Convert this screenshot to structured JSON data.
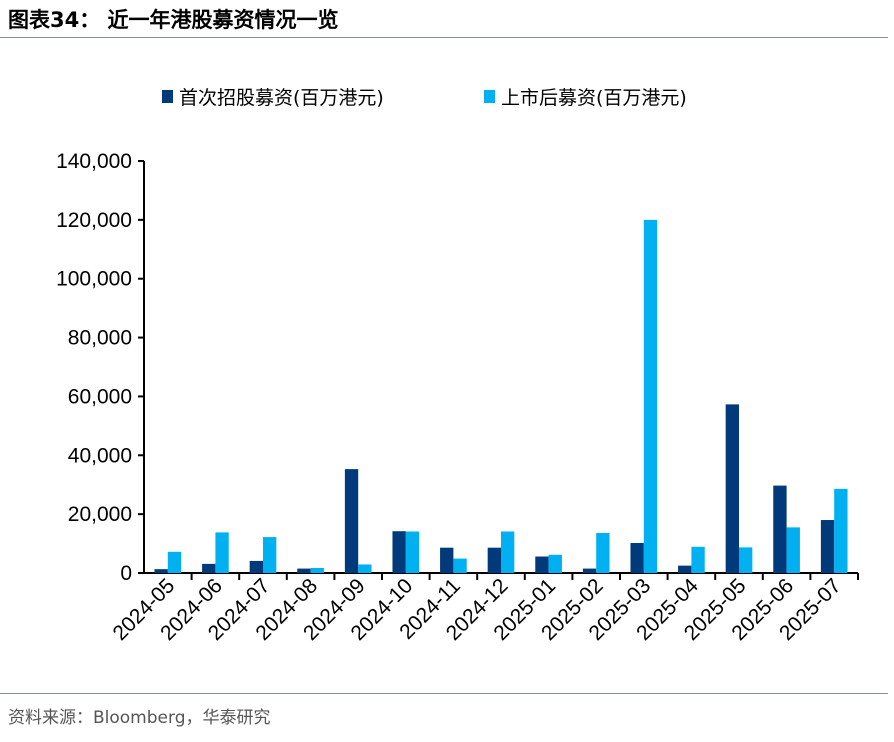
{
  "header": {
    "title": "图表34：  近一年港股募资情况一览"
  },
  "footer": {
    "source": "资料来源：Bloomberg，华泰研究"
  },
  "chart_data": {
    "type": "bar",
    "title": "",
    "xlabel": "",
    "ylabel": "",
    "ylim": [
      0,
      140000
    ],
    "yticks": [
      "0",
      "20,000",
      "40,000",
      "60,000",
      "80,000",
      "100,000",
      "120,000",
      "140,000"
    ],
    "legend_position": "top",
    "grid": false,
    "categories": [
      "2024-05",
      "2024-06",
      "2024-07",
      "2024-08",
      "2024-09",
      "2024-10",
      "2024-11",
      "2024-12",
      "2025-01",
      "2025-02",
      "2025-03",
      "2025-04",
      "2025-05",
      "2025-06",
      "2025-07"
    ],
    "series": [
      {
        "name": "首次招股募资(百万港元)",
        "color": "#003a7a",
        "values": [
          1300,
          3100,
          4100,
          1500,
          35300,
          14200,
          8600,
          8600,
          5600,
          1500,
          10200,
          2500,
          57300,
          29700,
          18000
        ]
      },
      {
        "name": "上市后募资(百万港元)",
        "color": "#00b0f0",
        "values": [
          7200,
          13800,
          12200,
          1700,
          2900,
          14100,
          4900,
          14100,
          6200,
          13600,
          120000,
          8900,
          8700,
          15500,
          28600
        ]
      }
    ]
  }
}
